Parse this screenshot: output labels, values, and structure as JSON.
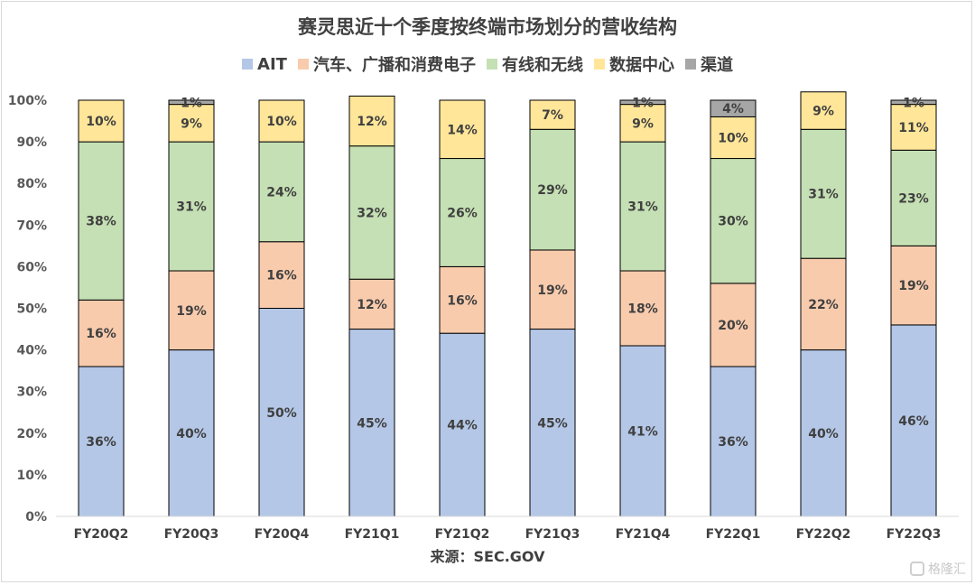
{
  "chart_data": {
    "type": "bar",
    "stacked": true,
    "title": "赛灵思近十个季度按终端市场划分的营收结构",
    "xlabel": "来源：SEC.GOV",
    "ylabel": "",
    "ylim": [
      0,
      100
    ],
    "yticks": [
      "0%",
      "10%",
      "20%",
      "30%",
      "40%",
      "50%",
      "60%",
      "70%",
      "80%",
      "90%",
      "100%"
    ],
    "grid": false,
    "legend_position": "top",
    "categories": [
      "FY20Q2",
      "FY20Q3",
      "FY20Q4",
      "FY21Q1",
      "FY21Q2",
      "FY21Q3",
      "FY21Q4",
      "FY22Q1",
      "FY22Q2",
      "FY22Q3"
    ],
    "series": [
      {
        "name": "AIT",
        "color": "#b4c7e7",
        "values": [
          36,
          40,
          50,
          45,
          44,
          45,
          41,
          36,
          40,
          46
        ],
        "labels": [
          "36%",
          "40%",
          "50%",
          "45%",
          "44%",
          "45%",
          "41%",
          "36%",
          "40%",
          "46%"
        ]
      },
      {
        "name": "汽车、广播和消费电子",
        "color": "#f8cbad",
        "values": [
          16,
          19,
          16,
          12,
          16,
          19,
          18,
          20,
          22,
          19
        ],
        "labels": [
          "16%",
          "19%",
          "16%",
          "12%",
          "16%",
          "19%",
          "18%",
          "20%",
          "22%",
          "19%"
        ]
      },
      {
        "name": "有线和无线",
        "color": "#c5e0b4",
        "values": [
          38,
          31,
          24,
          32,
          26,
          29,
          31,
          30,
          31,
          23
        ],
        "labels": [
          "38%",
          "31%",
          "24%",
          "32%",
          "26%",
          "29%",
          "31%",
          "30%",
          "31%",
          "23%"
        ]
      },
      {
        "name": "数据中心",
        "color": "#ffe699",
        "values": [
          10,
          9,
          10,
          12,
          14,
          7,
          9,
          10,
          9,
          11
        ],
        "labels": [
          "10%",
          "9%",
          "10%",
          "12%",
          "14%",
          "7%",
          "9%",
          "10%",
          "9%",
          "11%"
        ]
      },
      {
        "name": "渠道",
        "color": "#a6a6a6",
        "values": [
          0,
          1,
          0,
          0,
          0,
          0,
          1,
          4,
          0,
          1
        ],
        "labels": [
          "",
          "1%",
          "",
          "",
          "",
          "",
          "1%",
          "4%",
          "",
          "1%"
        ]
      }
    ]
  },
  "watermark": {
    "text": "格隆汇"
  }
}
